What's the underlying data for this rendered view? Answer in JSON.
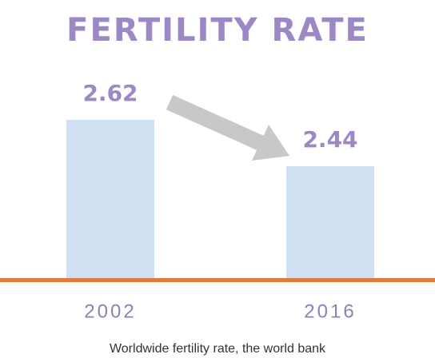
{
  "chart_data": {
    "type": "bar",
    "title": "FERTILITY RATE",
    "categories": [
      "2002",
      "2016"
    ],
    "values": [
      2.62,
      2.44
    ],
    "color": "#cfe0f3",
    "ylim": [
      2,
      2.8
    ],
    "caption": "Worldwide fertility rate, the world bank"
  }
}
